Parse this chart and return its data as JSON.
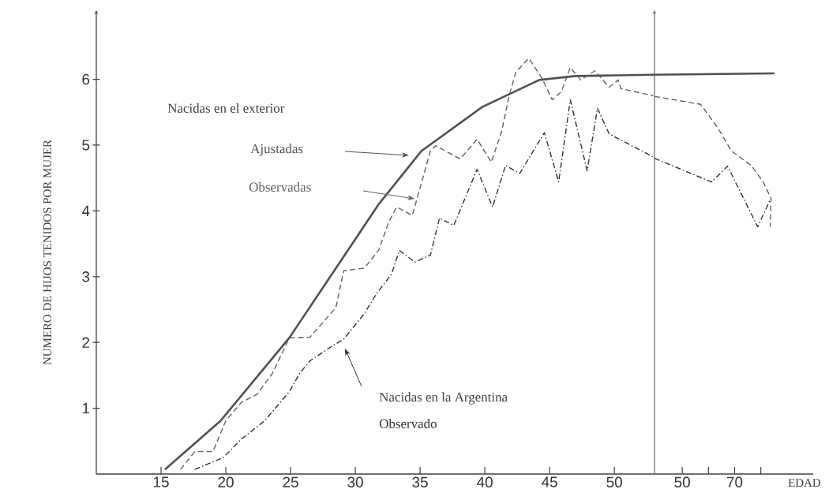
{
  "chart_data": [
    {
      "type": "line",
      "ylabel": "NUMERO DE HIJOS TENIDOS POR MUJER",
      "annotations": [
        "Nacidas en el exterior",
        "Nacidas en la Argentina"
      ],
      "xlim": [
        10,
        53.1
      ],
      "ylim": [
        0,
        7.05
      ],
      "xticks": [
        15,
        20,
        25,
        30,
        35,
        40,
        45,
        50
      ],
      "yticks": [
        1,
        2,
        3,
        4,
        5,
        6
      ],
      "grid": false,
      "legend": false,
      "series": [
        {
          "name": "Ajustadas",
          "color": "#505050",
          "line_style": "solid",
          "x": [
            15.3,
            19.6,
            24.9,
            29.9,
            31.8,
            35.1,
            39.8,
            44.2,
            47.0,
            50.3,
            53.1
          ],
          "values": [
            0.07,
            0.81,
            2.07,
            3.54,
            4.1,
            4.91,
            5.58,
            5.99,
            6.05,
            6.06,
            6.07
          ]
        },
        {
          "name": "Observadas",
          "color": "#606060",
          "line_style": "dashed",
          "x": [
            16.5,
            17.6,
            19.0,
            20.0,
            21.2,
            22.4,
            23.6,
            24.9,
            26.5,
            28.5,
            29.1,
            30.7,
            31.8,
            32.6,
            33.2,
            34.4,
            35.8,
            36.2,
            38.1,
            39.4,
            40.5,
            41.3,
            41.9,
            42.4,
            43.4,
            44.4,
            45.2,
            45.9,
            46.6,
            47.4,
            48.5,
            49.6,
            50.3,
            50.5,
            53.0
          ],
          "values": [
            0.07,
            0.34,
            0.34,
            0.81,
            1.09,
            1.21,
            1.53,
            2.07,
            2.08,
            2.53,
            3.09,
            3.13,
            3.4,
            3.84,
            4.06,
            3.93,
            4.91,
            4.99,
            4.79,
            5.09,
            4.74,
            5.21,
            5.77,
            6.11,
            6.32,
            6.02,
            5.69,
            5.81,
            6.18,
            5.99,
            6.13,
            5.88,
            5.99,
            5.86,
            5.75
          ]
        },
        {
          "name": "Observado",
          "color": "#303030",
          "line_style": "dashdot",
          "x": [
            17.6,
            19.8,
            21.2,
            23.0,
            24.9,
            25.7,
            26.5,
            28.1,
            29.1,
            30.7,
            31.6,
            32.8,
            33.4,
            34.6,
            35.8,
            36.5,
            37.6,
            39.4,
            40.6,
            41.6,
            42.7,
            44.6,
            45.7,
            46.6,
            47.9,
            48.7,
            49.6,
            53.1
          ],
          "values": [
            0.07,
            0.25,
            0.53,
            0.81,
            1.25,
            1.53,
            1.72,
            1.93,
            2.05,
            2.44,
            2.73,
            3.04,
            3.4,
            3.22,
            3.33,
            3.89,
            3.78,
            4.63,
            4.06,
            4.69,
            4.57,
            5.19,
            4.44,
            5.69,
            4.61,
            5.56,
            5.17,
            4.81
          ]
        }
      ]
    },
    {
      "type": "line",
      "xlabel": "EDAD",
      "xlim": [
        39.4,
        100
      ],
      "ylim": [
        0,
        7.05
      ],
      "xticks": [
        50,
        {
          "value": 60,
          "label": null
        },
        70,
        {
          "value": 80,
          "label": null
        }
      ],
      "tick_labels": "x",
      "grid": false,
      "legend": false,
      "series": [
        {
          "color": "#505050",
          "line_style": "solid",
          "x": [
            39.4,
            85.2
          ],
          "values": [
            6.07,
            6.09
          ]
        },
        {
          "color": "#606060",
          "line_style": "dashed",
          "x": [
            39.4,
            57.0,
            63.6,
            68.8,
            76.4,
            80.9,
            83.9,
            83.6
          ],
          "values": [
            5.74,
            5.62,
            5.26,
            4.91,
            4.69,
            4.44,
            4.19,
            3.76
          ]
        },
        {
          "color": "#303030",
          "line_style": "dashdot",
          "x": [
            39.4,
            61.2,
            67.3,
            78.8,
            83.6
          ],
          "values": [
            4.8,
            4.44,
            4.68,
            3.76,
            4.17
          ]
        }
      ]
    }
  ]
}
